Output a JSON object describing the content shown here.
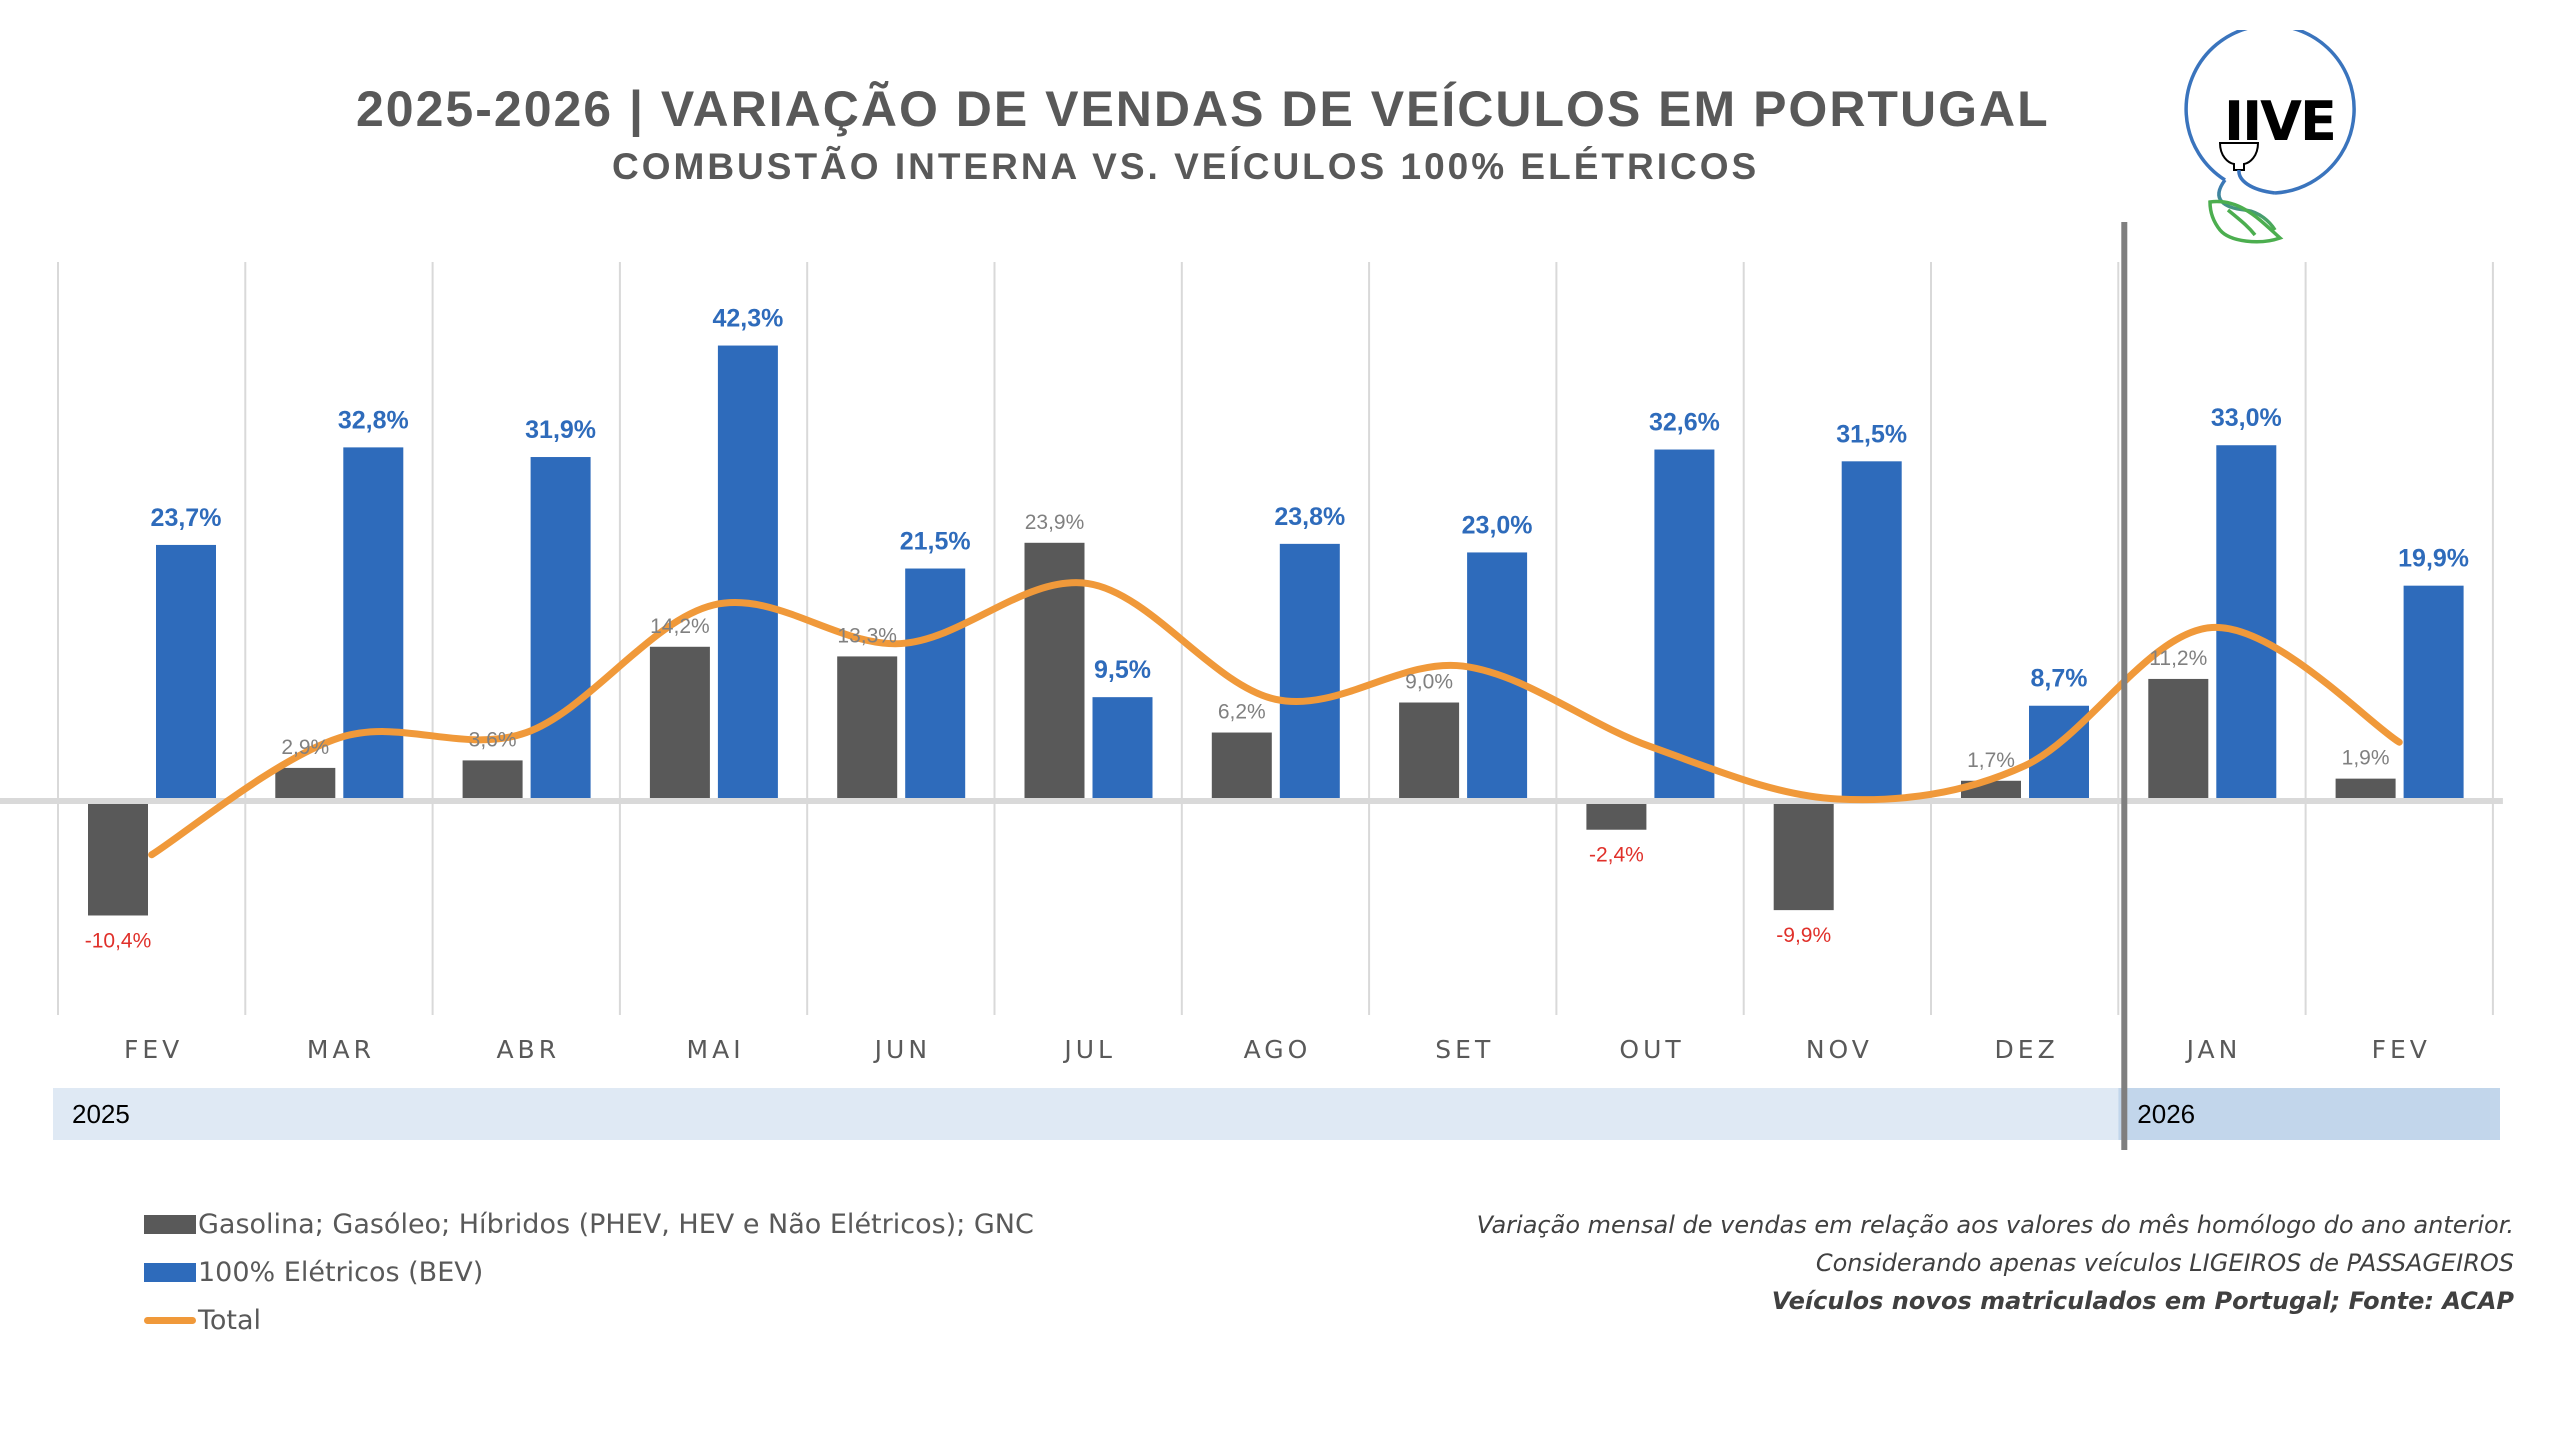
{
  "header": {
    "title": "2025-2026 | VARIAÇÃO DE VENDAS DE VEÍCULOS EM PORTUGAL",
    "subtitle": "COMBUSTÃO INTERNA VS. VEÍCULOS 100% ELÉTRICOS",
    "logo_text": "IIVE"
  },
  "colors": {
    "combustion": "#595959",
    "bev": "#2e6bbb",
    "total": "#f0993a",
    "negative_label": "#e0302a",
    "year_band_2025": "#dfe9f4",
    "year_band_2026": "#c2d6eb"
  },
  "chart_data": {
    "type": "bar",
    "title": "2025-2026 | VARIAÇÃO DE VENDAS DE VEÍCULOS EM PORTUGAL",
    "subtitle": "COMBUSTÃO INTERNA VS. VEÍCULOS 100% ELÉTRICOS",
    "xlabel": "",
    "ylabel": "",
    "unit": "%",
    "categories": [
      "FEV",
      "MAR",
      "ABR",
      "MAI",
      "JUN",
      "JUL",
      "AGO",
      "SET",
      "OUT",
      "NOV",
      "DEZ",
      "JAN",
      "FEV"
    ],
    "groups": [
      {
        "label": "2025",
        "categories_count": 11
      },
      {
        "label": "2026",
        "categories_count": 2
      }
    ],
    "series": [
      {
        "name": "Gasolina; Gasóleo; Híbridos (PHEV, HEV e Não Elétricos); GNC",
        "type": "bar",
        "values": [
          -10.4,
          2.9,
          3.6,
          14.2,
          13.3,
          23.9,
          6.2,
          9.0,
          -2.4,
          -9.9,
          1.7,
          11.2,
          1.9
        ],
        "labels": [
          "-10,4%",
          "2,9%",
          "3,6%",
          "14,2%",
          "13,3%",
          "23,9%",
          "6,2%",
          "9,0%",
          "-2,4%",
          "-9,9%",
          "1,7%",
          "11,2%",
          "1,9%"
        ]
      },
      {
        "name": "100% Elétricos (BEV)",
        "type": "bar",
        "values": [
          23.7,
          32.8,
          31.9,
          42.3,
          21.5,
          9.5,
          23.8,
          23.0,
          32.6,
          31.5,
          8.7,
          33.0,
          19.9
        ],
        "labels": [
          "23,7%",
          "32,8%",
          "31,9%",
          "42,3%",
          "21,5%",
          "9,5%",
          "23,8%",
          "23,0%",
          "32,6%",
          "31,5%",
          "8,7%",
          "33,0%",
          "19,9%"
        ]
      },
      {
        "name": "Total",
        "type": "line",
        "smooth": true,
        "values": [
          -5.2,
          5.7,
          6.2,
          18.1,
          14.5,
          20.1,
          9.3,
          12.4,
          4.9,
          0.0,
          3.1,
          16.0,
          5.3
        ]
      }
    ],
    "ylim": [
      -12,
      49
    ],
    "grid": "vertical",
    "legend": "bottom-left"
  },
  "legend": {
    "items": [
      {
        "label": "Gasolina; Gasóleo; Híbridos (PHEV, HEV e Não Elétricos); GNC",
        "kind": "bar"
      },
      {
        "label": "100% Elétricos (BEV)",
        "kind": "bar"
      },
      {
        "label": "Total",
        "kind": "line"
      }
    ]
  },
  "notes": {
    "line1": "Variação mensal de vendas em relação aos valores do mês homólogo do ano anterior.",
    "line2": "Considerando apenas veículos LIGEIROS de PASSAGEIROS",
    "line3": "Veículos novos matriculados em Portugal; Fonte: ACAP"
  }
}
